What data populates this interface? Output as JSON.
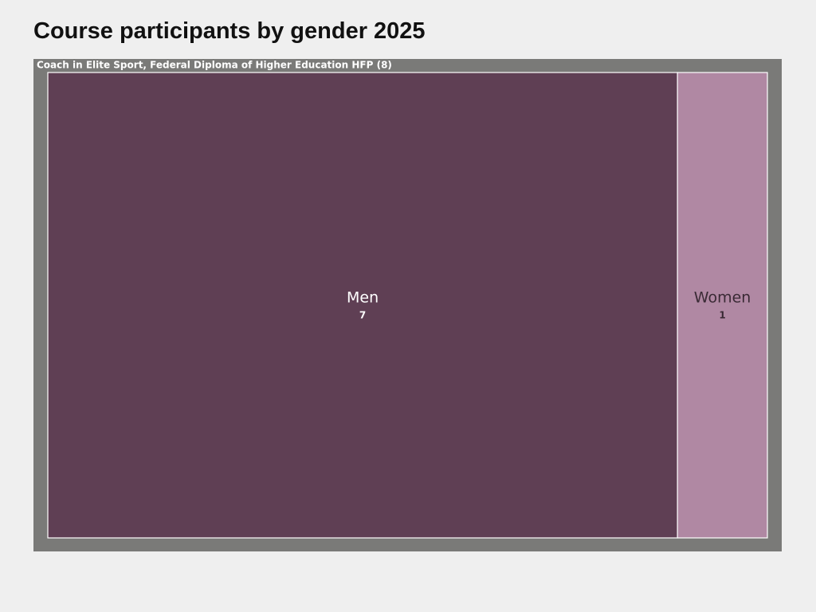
{
  "chart_data": {
    "type": "treemap",
    "title": "Course participants by gender 2025",
    "parent": "Coach in Elite Sport, Federal Diploma of Higher Education HFP (8)",
    "parent_color": "#7a7a78",
    "categories": [
      "Men",
      "Women"
    ],
    "values": [
      7,
      1
    ],
    "colors": [
      "#5f3f54",
      "#b088a3"
    ]
  }
}
